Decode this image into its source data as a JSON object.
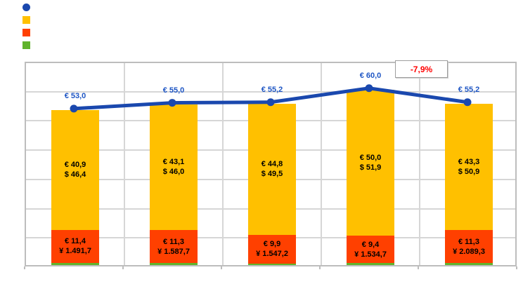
{
  "chart_data": {
    "type": "bar",
    "subtype": "stacked-bar-with-line-overlay",
    "title": "",
    "xlabel": "",
    "ylabel": "",
    "categories": [
      "",
      "",
      "",
      "",
      ""
    ],
    "ylim": [
      0,
      70
    ],
    "y_step": 10,
    "grid": true,
    "axis_tick_labels_visible": false,
    "series": [
      {
        "name": "line-total-eur",
        "type": "line",
        "color": "#1a48ae",
        "label_color": "#1d55c4",
        "values": [
          53.0,
          55.0,
          55.2,
          60.0,
          55.2
        ],
        "labels": [
          "€ 53,0",
          "€ 55,0",
          "€ 55,2",
          "€ 60,0",
          "€ 55,2"
        ]
      },
      {
        "name": "orange-segment",
        "type": "bar",
        "color": "#ffc000",
        "values": [
          40.9,
          43.1,
          44.8,
          50.0,
          43.3
        ],
        "labels": [
          "€ 40,9\n$ 46,4",
          "€ 43,1\n$ 46,0",
          "€ 44,8\n$ 49,5",
          "€ 50,0\n$ 51,9",
          "€ 43,3\n$ 50,9"
        ]
      },
      {
        "name": "red-segment",
        "type": "bar",
        "color": "#ff4000",
        "values": [
          11.4,
          11.3,
          9.9,
          9.4,
          11.3
        ],
        "labels": [
          "€ 11,4\n¥ 1.491,7",
          "€ 11,3\n¥ 1.587,7",
          "€ 9,9\n¥ 1.547,2",
          "€ 9,4\n¥ 1.534,7",
          "€ 11,3\n¥ 2.089,3"
        ]
      },
      {
        "name": "green-segment",
        "type": "bar",
        "color": "#60b32c",
        "values_estimated": true,
        "values": [
          0.7,
          0.6,
          0.5,
          0.6,
          0.6
        ],
        "labels": [
          "",
          "",
          "",
          "",
          ""
        ]
      }
    ],
    "annotation": {
      "text": "-7,9%",
      "color": "#ff0000"
    },
    "legend": {
      "position": "top-left",
      "items": [
        {
          "shape": "circle",
          "color": "#1a48ae",
          "label": ""
        },
        {
          "shape": "square",
          "color": "#ffc000",
          "label": ""
        },
        {
          "shape": "square",
          "color": "#ff4000",
          "label": ""
        },
        {
          "shape": "square",
          "color": "#60b32c",
          "label": ""
        }
      ]
    }
  },
  "layout_colors": {
    "gridline": "#d6d6d6",
    "plot_border": "#bdbdbd",
    "background": "#ffffff"
  }
}
